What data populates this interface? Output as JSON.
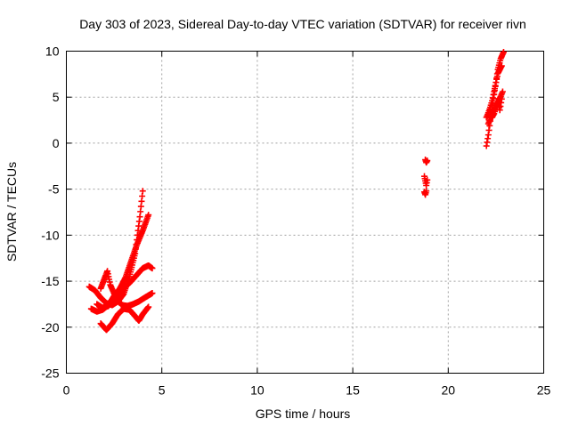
{
  "chart_data": {
    "type": "scatter",
    "title": "Day 303 of 2023, Sidereal Day-to-day VTEC variation (SDTVAR) for receiver rivn",
    "xlabel": "GPS time / hours",
    "ylabel": "SDTVAR / TECUs",
    "xlim": [
      0,
      25
    ],
    "ylim": [
      -25,
      10
    ],
    "xticks": [
      "0",
      "5",
      "10",
      "15",
      "20",
      "25"
    ],
    "yticks": [
      "10",
      "5",
      "0",
      "-5",
      "-10",
      "-15",
      "-20",
      "-25"
    ],
    "grid": true,
    "marker": "plus",
    "series": [
      {
        "color": "#ff0000",
        "tracks": [
          [
            [
              1.2,
              -15.6
            ],
            [
              1.5,
              -16.0
            ],
            [
              1.8,
              -16.8
            ],
            [
              2.1,
              -17.4
            ],
            [
              2.4,
              -17.6
            ],
            [
              2.7,
              -17.2
            ],
            [
              3.0,
              -16.4
            ],
            [
              3.3,
              -14.5
            ],
            [
              3.6,
              -12.0
            ],
            [
              3.85,
              -8.0
            ],
            [
              4.0,
              -5.2
            ]
          ],
          [
            [
              1.3,
              -18.0
            ],
            [
              1.6,
              -18.3
            ],
            [
              1.9,
              -18.1
            ],
            [
              2.2,
              -17.6
            ],
            [
              2.5,
              -16.6
            ],
            [
              2.8,
              -15.8
            ],
            [
              3.1,
              -14.6
            ],
            [
              3.4,
              -12.8
            ],
            [
              3.7,
              -11.0
            ],
            [
              4.0,
              -9.5
            ],
            [
              4.3,
              -7.8
            ]
          ],
          [
            [
              1.6,
              -17.5
            ],
            [
              1.9,
              -17.9
            ],
            [
              2.2,
              -17.7
            ],
            [
              2.5,
              -17.0
            ],
            [
              2.8,
              -16.2
            ],
            [
              3.1,
              -15.6
            ],
            [
              3.4,
              -15.0
            ],
            [
              3.7,
              -14.3
            ],
            [
              4.0,
              -13.6
            ],
            [
              4.3,
              -13.3
            ],
            [
              4.5,
              -13.6
            ]
          ],
          [
            [
              1.8,
              -15.8
            ],
            [
              2.0,
              -14.7
            ],
            [
              2.15,
              -13.9
            ],
            [
              2.3,
              -15.4
            ],
            [
              2.6,
              -16.8
            ],
            [
              2.9,
              -17.6
            ],
            [
              3.2,
              -17.7
            ],
            [
              3.5,
              -17.5
            ],
            [
              3.8,
              -17.2
            ],
            [
              4.1,
              -16.8
            ],
            [
              4.5,
              -16.3
            ]
          ],
          [
            [
              1.8,
              -19.6
            ],
            [
              2.1,
              -20.3
            ],
            [
              2.4,
              -19.6
            ],
            [
              2.7,
              -18.6
            ],
            [
              3.0,
              -18.0
            ],
            [
              3.3,
              -18.1
            ],
            [
              3.6,
              -18.8
            ],
            [
              3.8,
              -19.3
            ],
            [
              4.0,
              -18.6
            ],
            [
              4.3,
              -17.8
            ]
          ]
        ]
      },
      {
        "color": "#ff0000",
        "tracks": [
          [
            [
              18.8,
              -1.8
            ],
            [
              18.85,
              -2.1
            ],
            [
              18.9,
              -1.9
            ]
          ],
          [
            [
              18.75,
              -3.6
            ],
            [
              18.8,
              -4.1
            ],
            [
              18.85,
              -4.6
            ],
            [
              18.9,
              -4.0
            ]
          ],
          [
            [
              18.75,
              -5.3
            ],
            [
              18.8,
              -5.6
            ],
            [
              18.85,
              -5.2
            ]
          ]
        ]
      },
      {
        "color": "#ff0000",
        "tracks": [
          [
            [
              22.0,
              -0.3
            ],
            [
              22.1,
              0.9
            ],
            [
              22.2,
              2.4
            ],
            [
              22.3,
              3.9
            ],
            [
              22.4,
              5.3
            ],
            [
              22.5,
              6.6
            ],
            [
              22.6,
              8.0
            ],
            [
              22.75,
              9.2
            ],
            [
              22.9,
              9.9
            ]
          ],
          [
            [
              22.0,
              2.8
            ],
            [
              22.1,
              3.3
            ],
            [
              22.2,
              3.9
            ],
            [
              22.3,
              4.6
            ],
            [
              22.4,
              5.6
            ],
            [
              22.5,
              6.6
            ],
            [
              22.6,
              7.6
            ],
            [
              22.8,
              8.4
            ]
          ],
          [
            [
              22.1,
              2.1
            ],
            [
              22.2,
              2.6
            ],
            [
              22.3,
              3.1
            ],
            [
              22.4,
              3.6
            ],
            [
              22.5,
              4.1
            ],
            [
              22.6,
              4.5
            ],
            [
              22.75,
              5.1
            ],
            [
              22.85,
              5.6
            ]
          ],
          [
            [
              22.2,
              3.6
            ],
            [
              22.3,
              2.8
            ],
            [
              22.4,
              3.2
            ],
            [
              22.5,
              3.9
            ],
            [
              22.6,
              4.4
            ],
            [
              22.7,
              3.6
            ],
            [
              22.8,
              4.8
            ]
          ]
        ]
      }
    ]
  }
}
